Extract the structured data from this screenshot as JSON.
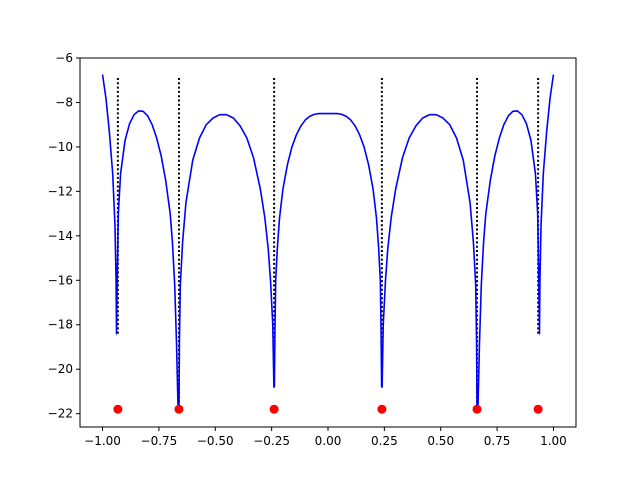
{
  "chart_data": {
    "type": "line",
    "title": "",
    "xlabel": "",
    "ylabel": "",
    "xlim": [
      -1.1,
      1.1
    ],
    "ylim": [
      -22.6,
      -6.0
    ],
    "x_ticks": [
      -1.0,
      -0.75,
      -0.5,
      -0.25,
      0.0,
      0.25,
      0.5,
      0.75,
      1.0
    ],
    "x_tick_labels": [
      "−1.00",
      "−0.75",
      "−0.50",
      "−0.25",
      "0.00",
      "0.25",
      "0.50",
      "0.75",
      "1.00"
    ],
    "y_ticks": [
      -22,
      -20,
      -18,
      -16,
      -14,
      -12,
      -10,
      -8,
      -6
    ],
    "y_tick_labels": [
      "−22",
      "−20",
      "−18",
      "−16",
      "−14",
      "−12",
      "−10",
      "−8",
      "−6"
    ],
    "grid": false,
    "series": [
      {
        "style": "solid line",
        "color": "#0000ff",
        "x": [
          -1.0,
          -0.985,
          -0.97,
          -0.955,
          -0.945,
          -0.94,
          -0.938,
          -0.935,
          -0.93,
          -0.92,
          -0.9,
          -0.88,
          -0.86,
          -0.84,
          -0.82,
          -0.8,
          -0.78,
          -0.76,
          -0.74,
          -0.72,
          -0.7,
          -0.69,
          -0.68,
          -0.672,
          -0.665,
          -0.663,
          -0.661,
          -0.659,
          -0.655,
          -0.645,
          -0.63,
          -0.6,
          -0.57,
          -0.54,
          -0.51,
          -0.48,
          -0.45,
          -0.42,
          -0.39,
          -0.36,
          -0.33,
          -0.3,
          -0.28,
          -0.265,
          -0.255,
          -0.245,
          -0.24,
          -0.238,
          -0.235,
          -0.232,
          -0.225,
          -0.215,
          -0.2,
          -0.18,
          -0.16,
          -0.14,
          -0.12,
          -0.1,
          -0.08,
          -0.06,
          -0.04,
          -0.02,
          0.0,
          0.02,
          0.04,
          0.06,
          0.08,
          0.1,
          0.12,
          0.14,
          0.16,
          0.18,
          0.2,
          0.215,
          0.225,
          0.232,
          0.235,
          0.238,
          0.24,
          0.245,
          0.255,
          0.265,
          0.28,
          0.3,
          0.33,
          0.36,
          0.39,
          0.42,
          0.45,
          0.48,
          0.51,
          0.54,
          0.57,
          0.6,
          0.63,
          0.645,
          0.655,
          0.659,
          0.661,
          0.663,
          0.665,
          0.672,
          0.68,
          0.69,
          0.7,
          0.72,
          0.74,
          0.76,
          0.78,
          0.8,
          0.82,
          0.84,
          0.86,
          0.88,
          0.9,
          0.92,
          0.93,
          0.935,
          0.938,
          0.94,
          0.945,
          0.955,
          0.97,
          0.985,
          1.0
        ],
        "y": [
          -6.75,
          -7.8,
          -9.3,
          -11.2,
          -13.5,
          -16.0,
          -18.4,
          -16.0,
          -13.0,
          -11.2,
          -9.7,
          -8.95,
          -8.55,
          -8.38,
          -8.4,
          -8.6,
          -9.0,
          -9.6,
          -10.4,
          -11.5,
          -13.0,
          -14.3,
          -16.2,
          -18.8,
          -21.8,
          -21.8,
          -21.8,
          -18.8,
          -16.2,
          -14.3,
          -12.5,
          -10.6,
          -9.6,
          -9.0,
          -8.7,
          -8.55,
          -8.55,
          -8.7,
          -9.05,
          -9.6,
          -10.5,
          -11.9,
          -13.2,
          -14.6,
          -16.0,
          -18.0,
          -20.8,
          -20.8,
          -18.0,
          -16.0,
          -14.6,
          -13.2,
          -11.9,
          -10.8,
          -10.0,
          -9.45,
          -9.05,
          -8.78,
          -8.62,
          -8.53,
          -8.5,
          -8.5,
          -8.5,
          -8.5,
          -8.5,
          -8.53,
          -8.62,
          -8.78,
          -9.05,
          -9.45,
          -10.0,
          -10.8,
          -11.9,
          -13.2,
          -14.6,
          -16.0,
          -18.0,
          -20.8,
          -20.8,
          -18.0,
          -16.0,
          -14.6,
          -13.2,
          -11.9,
          -10.5,
          -9.6,
          -9.05,
          -8.7,
          -8.55,
          -8.55,
          -8.7,
          -9.0,
          -9.6,
          -10.6,
          -12.5,
          -14.3,
          -16.2,
          -18.8,
          -21.8,
          -21.8,
          -21.8,
          -18.8,
          -16.2,
          -14.3,
          -13.0,
          -11.5,
          -10.4,
          -9.6,
          -9.0,
          -8.6,
          -8.4,
          -8.38,
          -8.55,
          -8.95,
          -9.7,
          -11.2,
          -13.0,
          -16.0,
          -18.4,
          -16.0,
          -13.5,
          -11.2,
          -9.3,
          -7.8,
          -6.75
        ]
      },
      {
        "style": "dotted vertical lines",
        "color": "#000000",
        "x": [
          -0.932,
          -0.661,
          -0.239,
          0.239,
          0.661,
          0.932
        ],
        "y_top": [
          -6.9,
          -6.9,
          -6.9,
          -6.9,
          -6.9,
          -6.9
        ],
        "y_bottom": [
          -18.4,
          -21.8,
          -20.8,
          -20.8,
          -21.8,
          -18.4
        ]
      },
      {
        "style": "markers",
        "color": "#ff0000",
        "x": [
          -0.932,
          -0.661,
          -0.239,
          0.239,
          0.661,
          0.932
        ],
        "y": [
          -21.8,
          -21.8,
          -21.8,
          -21.8,
          -21.8,
          -21.8
        ]
      }
    ]
  }
}
